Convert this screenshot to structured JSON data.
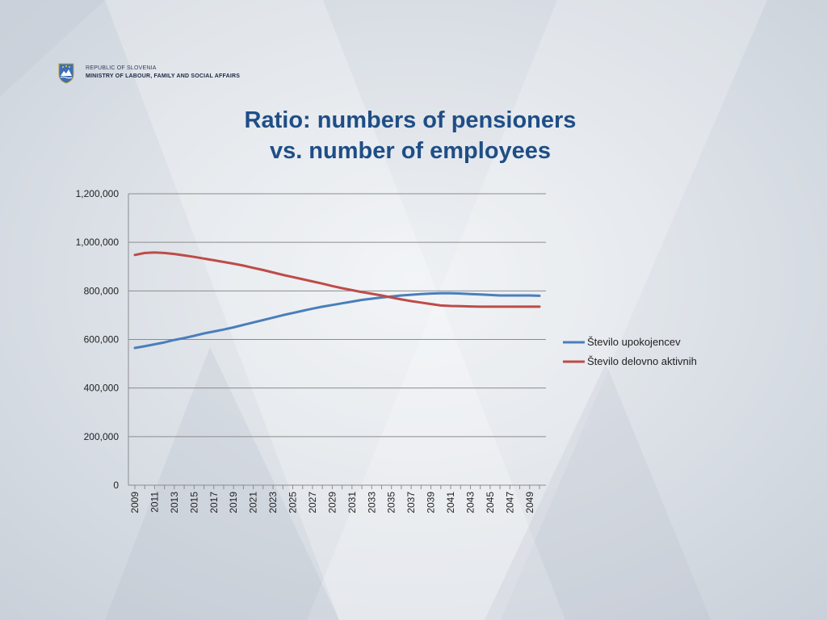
{
  "header": {
    "org_line1": "REPUBLIC OF SLOVENIA",
    "org_line2": "MINISTRY OF LABOUR, FAMILY AND SOCIAL AFFAIRS",
    "crest_icon": "slovenia-coat-of-arms-icon"
  },
  "slide": {
    "title_line1": "Ratio: numbers of pensioners",
    "title_line2": "vs. number of employees"
  },
  "colors": {
    "title": "#1f4e86",
    "series_pensioners": "#4a7ebb",
    "series_employees": "#be4b48",
    "grid": "#8c8c8c"
  },
  "chart_data": {
    "type": "line",
    "title": "",
    "xlabel": "",
    "ylabel": "",
    "ylim": [
      0,
      1200000
    ],
    "yticks": [
      "0",
      "200,000",
      "400,000",
      "600,000",
      "800,000",
      "1,000,000",
      "1,200,000"
    ],
    "x": [
      2009,
      2010,
      2011,
      2012,
      2013,
      2014,
      2015,
      2016,
      2017,
      2018,
      2019,
      2020,
      2021,
      2022,
      2023,
      2024,
      2025,
      2026,
      2027,
      2028,
      2029,
      2030,
      2031,
      2032,
      2033,
      2034,
      2035,
      2036,
      2037,
      2038,
      2039,
      2040,
      2041,
      2042,
      2043,
      2044,
      2045,
      2046,
      2047,
      2048,
      2049,
      2050
    ],
    "xtick_labels": [
      "2009",
      "2011",
      "2013",
      "2015",
      "2017",
      "2019",
      "2021",
      "2023",
      "2025",
      "2027",
      "2029",
      "2031",
      "2033",
      "2035",
      "2037",
      "2039",
      "2041",
      "2043",
      "2045",
      "2047",
      "2049"
    ],
    "grid": true,
    "legend": "right",
    "series": [
      {
        "name": "Število upokojencev",
        "color": "#4a7ebb",
        "values": [
          565000,
          572000,
          580000,
          588000,
          598000,
          606000,
          615000,
          625000,
          633000,
          641000,
          650000,
          660000,
          670000,
          680000,
          690000,
          700000,
          709000,
          718000,
          727000,
          735000,
          742000,
          749000,
          756000,
          763000,
          768000,
          773000,
          777000,
          781000,
          784000,
          787000,
          789000,
          790000,
          790000,
          789000,
          787000,
          785000,
          783000,
          781000,
          781000,
          781000,
          781000,
          780000
        ]
      },
      {
        "name": "Število delovno aktivnih",
        "color": "#be4b48",
        "values": [
          948000,
          956000,
          958000,
          956000,
          952000,
          946000,
          940000,
          933000,
          926000,
          919000,
          912000,
          904000,
          895000,
          886000,
          876000,
          866000,
          857000,
          848000,
          839000,
          830000,
          820000,
          811000,
          803000,
          795000,
          788000,
          781000,
          773000,
          765000,
          758000,
          752000,
          746000,
          740000,
          738000,
          737000,
          736000,
          735000,
          735000,
          735000,
          735000,
          735000,
          735000,
          735000
        ]
      }
    ]
  }
}
